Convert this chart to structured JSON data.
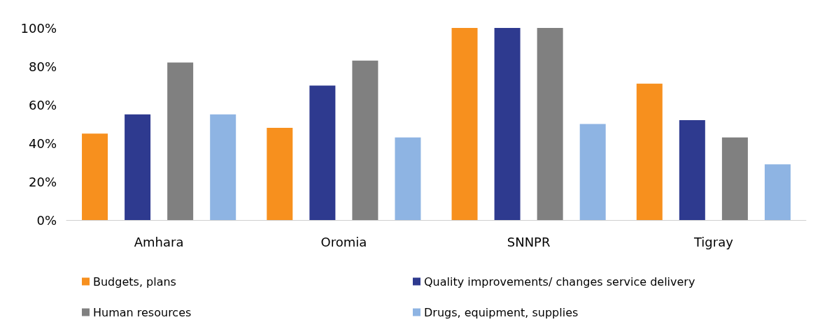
{
  "chart_data": {
    "type": "bar",
    "categories": [
      "Amhara",
      "Oromia",
      "SNNPR",
      "Tigray"
    ],
    "series": [
      {
        "name": "Budgets, plans",
        "color": "#f7901e",
        "values": [
          45,
          48,
          100,
          71
        ]
      },
      {
        "name": "Quality improvements/ changes service delivery",
        "color": "#2e3a8f",
        "values": [
          55,
          70,
          100,
          52
        ]
      },
      {
        "name": "Human resources",
        "color": "#808080",
        "values": [
          82,
          83,
          100,
          43
        ]
      },
      {
        "name": "Drugs, equipment, supplies",
        "color": "#8eb4e3",
        "values": [
          55,
          43,
          50,
          29
        ]
      }
    ],
    "ylim": [
      0,
      100
    ],
    "yticks": [
      {
        "value": 0,
        "label": "0%"
      },
      {
        "value": 20,
        "label": "20%"
      },
      {
        "value": 40,
        "label": "40%"
      },
      {
        "value": 60,
        "label": "60%"
      },
      {
        "value": 80,
        "label": "80%"
      },
      {
        "value": 100,
        "label": "100%"
      }
    ],
    "grid": false,
    "legend": "bottom"
  }
}
